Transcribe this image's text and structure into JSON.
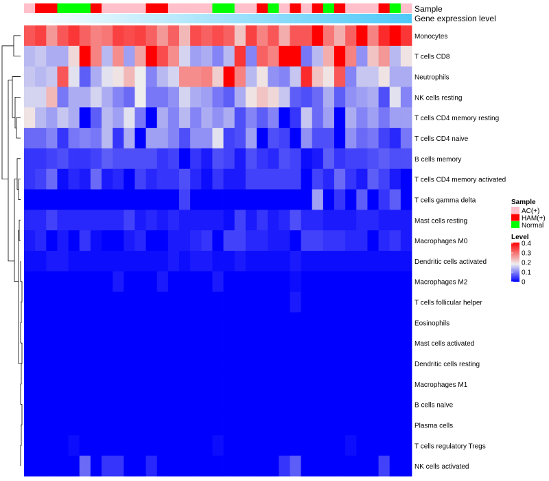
{
  "chart_data": {
    "type": "heatmap",
    "annotation_labels": [
      "Sample",
      "Gene expression level"
    ],
    "legend_sample": {
      "title": "Sample",
      "entries": [
        {
          "label": "AC(+)",
          "color": "#FFC0CB"
        },
        {
          "label": "HAM(+)",
          "color": "#FF0000"
        },
        {
          "label": "Normal",
          "color": "#00FF00"
        }
      ]
    },
    "legend_level": {
      "title": "Level",
      "ticks": [
        "0.4",
        "0.3",
        "0.2",
        "0.1",
        "0"
      ],
      "range": [
        0,
        0.4
      ],
      "colors": {
        "low": "#0000FF",
        "mid": "#EEEEEE",
        "high": "#FF0000"
      }
    },
    "expression_gradient": {
      "from": "#FFFFFF",
      "to": "#4DC8F8"
    },
    "samples": [
      "A",
      "H",
      "H",
      "N",
      "N",
      "N",
      "H",
      "A",
      "A",
      "A",
      "A",
      "H",
      "H",
      "A",
      "A",
      "A",
      "A",
      "N",
      "N",
      "A",
      "A",
      "H",
      "N",
      "A",
      "H",
      "A",
      "H",
      "N",
      "H",
      "A",
      "A",
      "A",
      "H",
      "N",
      "A"
    ],
    "sample_codes": {
      "A": "AC(+)",
      "H": "HAM(+)",
      "N": "Normal"
    },
    "rows": [
      "Monocytes",
      "T cells CD8",
      "Neutrophils",
      "NK cells resting",
      "T cells CD4 memory resting",
      "T cells CD4 naive",
      "B cells memory",
      "T cells CD4 memory activated",
      "T cells gamma delta",
      "Mast cells resting",
      "Macrophages M0",
      "Dendritic cells activated",
      "Macrophages M2",
      "T cells follicular helper",
      "Eosinophils",
      "Mast cells activated",
      "Dendritic cells resting",
      "Macrophages M1",
      "B cells naive",
      "Plasma cells",
      "T cells regulatory  Tregs",
      "NK cells activated"
    ],
    "values": [
      [
        0.32,
        0.34,
        0.26,
        0.32,
        0.35,
        0.31,
        0.28,
        0.29,
        0.34,
        0.33,
        0.34,
        0.31,
        0.26,
        0.31,
        0.23,
        0.33,
        0.31,
        0.33,
        0.31,
        0.22,
        0.34,
        0.28,
        0.32,
        0.24,
        0.32,
        0.32,
        0.4,
        0.29,
        0.24,
        0.31,
        0.4,
        0.28,
        0.36,
        0.4,
        0.35
      ],
      [
        0.14,
        0.15,
        0.13,
        0.13,
        0.2,
        0.4,
        0.28,
        0.14,
        0.27,
        0.12,
        0.25,
        0.4,
        0.33,
        0.27,
        0.16,
        0.12,
        0.13,
        0.1,
        0.14,
        0.35,
        0.1,
        0.31,
        0.28,
        0.4,
        0.4,
        0.09,
        0.14,
        0.24,
        0.4,
        0.28,
        0.11,
        0.22,
        0.26,
        0.14,
        0.19
      ],
      [
        0.15,
        0.14,
        0.15,
        0.32,
        0.17,
        0.07,
        0.13,
        0.17,
        0.19,
        0.23,
        0.18,
        0.1,
        0.14,
        0.16,
        0.27,
        0.27,
        0.28,
        0.21,
        0.4,
        0.28,
        0.14,
        0.19,
        0.11,
        0.1,
        0.15,
        0.36,
        0.22,
        0.19,
        0.32,
        0.1,
        0.15,
        0.15,
        0.19,
        0.13,
        0.13
      ],
      [
        0.16,
        0.16,
        0.23,
        0.09,
        0.13,
        0.13,
        0.16,
        0.13,
        0.1,
        0.08,
        0.18,
        0.09,
        0.09,
        0.11,
        0.16,
        0.13,
        0.12,
        0.09,
        0.07,
        0.13,
        0.19,
        0.22,
        0.2,
        0.15,
        0.07,
        0.06,
        0.08,
        0.13,
        0.07,
        0.11,
        0.12,
        0.13,
        0.06,
        0.17,
        0.1
      ],
      [
        0.19,
        0.14,
        0.12,
        0.15,
        0.13,
        0,
        0.07,
        0.14,
        0.12,
        0.17,
        0.09,
        0,
        0.13,
        0.1,
        0.14,
        0.1,
        0.13,
        0.11,
        0.13,
        0.06,
        0.1,
        0.07,
        0.1,
        0,
        0.04,
        0.15,
        0.08,
        0.12,
        0,
        0.13,
        0.1,
        0.12,
        0.09,
        0.12,
        0.12
      ],
      [
        0.08,
        0.08,
        0.1,
        0.04,
        0.09,
        0.1,
        0.09,
        0.14,
        0.04,
        0.13,
        0,
        0.12,
        0.12,
        0.1,
        0.06,
        0.11,
        0.11,
        0.17,
        0.05,
        0.06,
        0.12,
        0,
        0.06,
        0.05,
        0,
        0.11,
        0.06,
        0.06,
        0,
        0.11,
        0.08,
        0.09,
        0.05,
        0.03,
        0.09
      ],
      [
        0.04,
        0.04,
        0.05,
        0.06,
        0.04,
        0.04,
        0.05,
        0.07,
        0.06,
        0.06,
        0.06,
        0.06,
        0.04,
        0.05,
        0,
        0.04,
        0.02,
        0.06,
        0.05,
        0.02,
        0.06,
        0.04,
        0.03,
        0.06,
        0.05,
        0.01,
        0.02,
        0.07,
        0.04,
        0.05,
        0.05,
        0.06,
        0.07,
        0.06,
        0.06
      ],
      [
        0.04,
        0.05,
        0.08,
        0.01,
        0.03,
        0.02,
        0.08,
        0.02,
        0.03,
        0,
        0.05,
        0.03,
        0.04,
        0.04,
        0.06,
        0.03,
        0.01,
        0.04,
        0.02,
        0.02,
        0.05,
        0.05,
        0.05,
        0.05,
        0.05,
        0,
        0.05,
        0.03,
        0.08,
        0.04,
        0.02,
        0.07,
        0.05,
        0.02,
        0
      ],
      [
        0,
        0,
        0,
        0,
        0,
        0,
        0,
        0,
        0,
        0,
        0,
        0,
        0,
        0,
        0.05,
        0,
        0,
        0,
        0,
        0,
        0,
        0,
        0,
        0,
        0,
        0,
        0.12,
        0,
        0.04,
        0,
        0.07,
        0,
        0.04,
        0.07,
        0
      ],
      [
        0.03,
        0.03,
        0.05,
        0.03,
        0.03,
        0.03,
        0.03,
        0.03,
        0.03,
        0.05,
        0.02,
        0.03,
        0.02,
        0.03,
        0.02,
        0.02,
        0.02,
        0.02,
        0.01,
        0.05,
        0.02,
        0.04,
        0.02,
        0.03,
        0.06,
        0.03,
        0.03,
        0.02,
        0.02,
        0.02,
        0.03,
        0.03,
        0.02,
        0.02,
        0.02
      ],
      [
        0.02,
        0.03,
        0,
        0.02,
        0,
        0.04,
        0.01,
        0,
        0,
        0.02,
        0.03,
        0,
        0,
        0.02,
        0.02,
        0.03,
        0.04,
        0,
        0.05,
        0.05,
        0.03,
        0.03,
        0.02,
        0.02,
        0,
        0.05,
        0.05,
        0.04,
        0.04,
        0.03,
        0.03,
        0,
        0.03,
        0.04,
        0.02
      ],
      [
        0.01,
        0.01,
        0.02,
        0.02,
        0.01,
        0.01,
        0.01,
        0.01,
        0.01,
        0.01,
        0.01,
        0.01,
        0.01,
        0.02,
        0.01,
        0.02,
        0.02,
        0.01,
        0.01,
        0.02,
        0.01,
        0.01,
        0.01,
        0.01,
        0.02,
        0.01,
        0.01,
        0.01,
        0.01,
        0.01,
        0.01,
        0.01,
        0.01,
        0.01,
        0.01
      ],
      [
        0,
        0,
        0,
        0,
        0,
        0,
        0,
        0,
        0.02,
        0,
        0,
        0,
        0.02,
        0,
        0,
        0,
        0,
        0.02,
        0,
        0,
        0,
        0,
        0,
        0,
        0.01,
        0,
        0,
        0,
        0,
        0,
        0,
        0,
        0,
        0,
        0
      ],
      [
        0,
        0,
        0,
        0,
        0,
        0,
        0,
        0,
        0,
        0,
        0,
        0,
        0,
        0,
        0,
        0,
        0,
        0,
        0,
        0,
        0,
        0,
        0,
        0,
        0.02,
        0,
        0,
        0,
        0,
        0,
        0,
        0,
        0,
        0,
        0
      ],
      [
        0,
        0,
        0,
        0,
        0,
        0,
        0,
        0,
        0,
        0,
        0,
        0,
        0,
        0,
        0,
        0,
        0,
        0,
        0,
        0,
        0,
        0,
        0,
        0,
        0,
        0,
        0,
        0,
        0,
        0,
        0,
        0,
        0,
        0,
        0
      ],
      [
        0,
        0,
        0,
        0,
        0,
        0,
        0,
        0,
        0,
        0,
        0,
        0,
        0,
        0,
        0,
        0,
        0,
        0,
        0,
        0,
        0,
        0,
        0,
        0,
        0,
        0,
        0,
        0,
        0,
        0,
        0,
        0,
        0,
        0,
        0
      ],
      [
        0,
        0,
        0,
        0,
        0,
        0,
        0,
        0,
        0,
        0,
        0,
        0,
        0,
        0,
        0,
        0,
        0,
        0,
        0,
        0,
        0,
        0,
        0,
        0,
        0,
        0,
        0,
        0,
        0,
        0,
        0,
        0,
        0,
        0,
        0
      ],
      [
        0,
        0,
        0,
        0,
        0,
        0,
        0,
        0,
        0,
        0,
        0,
        0,
        0,
        0,
        0,
        0,
        0,
        0,
        0,
        0,
        0,
        0,
        0,
        0,
        0,
        0,
        0,
        0,
        0,
        0,
        0,
        0,
        0,
        0,
        0
      ],
      [
        0,
        0,
        0,
        0,
        0,
        0,
        0,
        0,
        0,
        0,
        0,
        0,
        0,
        0,
        0,
        0,
        0,
        0,
        0,
        0,
        0,
        0,
        0,
        0,
        0,
        0,
        0,
        0,
        0,
        0,
        0,
        0,
        0,
        0,
        0
      ],
      [
        0,
        0,
        0,
        0,
        0,
        0,
        0,
        0,
        0,
        0,
        0,
        0,
        0,
        0,
        0,
        0,
        0,
        0,
        0,
        0,
        0,
        0,
        0,
        0,
        0,
        0,
        0,
        0,
        0,
        0,
        0,
        0,
        0,
        0,
        0
      ],
      [
        0,
        0,
        0,
        0,
        0.01,
        0,
        0,
        0,
        0,
        0,
        0,
        0,
        0,
        0,
        0,
        0,
        0,
        0.01,
        0,
        0,
        0,
        0,
        0,
        0,
        0,
        0,
        0,
        0,
        0,
        0.01,
        0,
        0,
        0,
        0,
        0
      ],
      [
        0,
        0,
        0,
        0,
        0,
        0.08,
        0,
        0.04,
        0.04,
        0,
        0,
        0.03,
        0,
        0,
        0,
        0,
        0,
        0,
        0,
        0,
        0,
        0,
        0,
        0.04,
        0.07,
        0,
        0,
        0,
        0,
        0,
        0,
        0,
        0.05,
        0,
        0
      ]
    ]
  }
}
